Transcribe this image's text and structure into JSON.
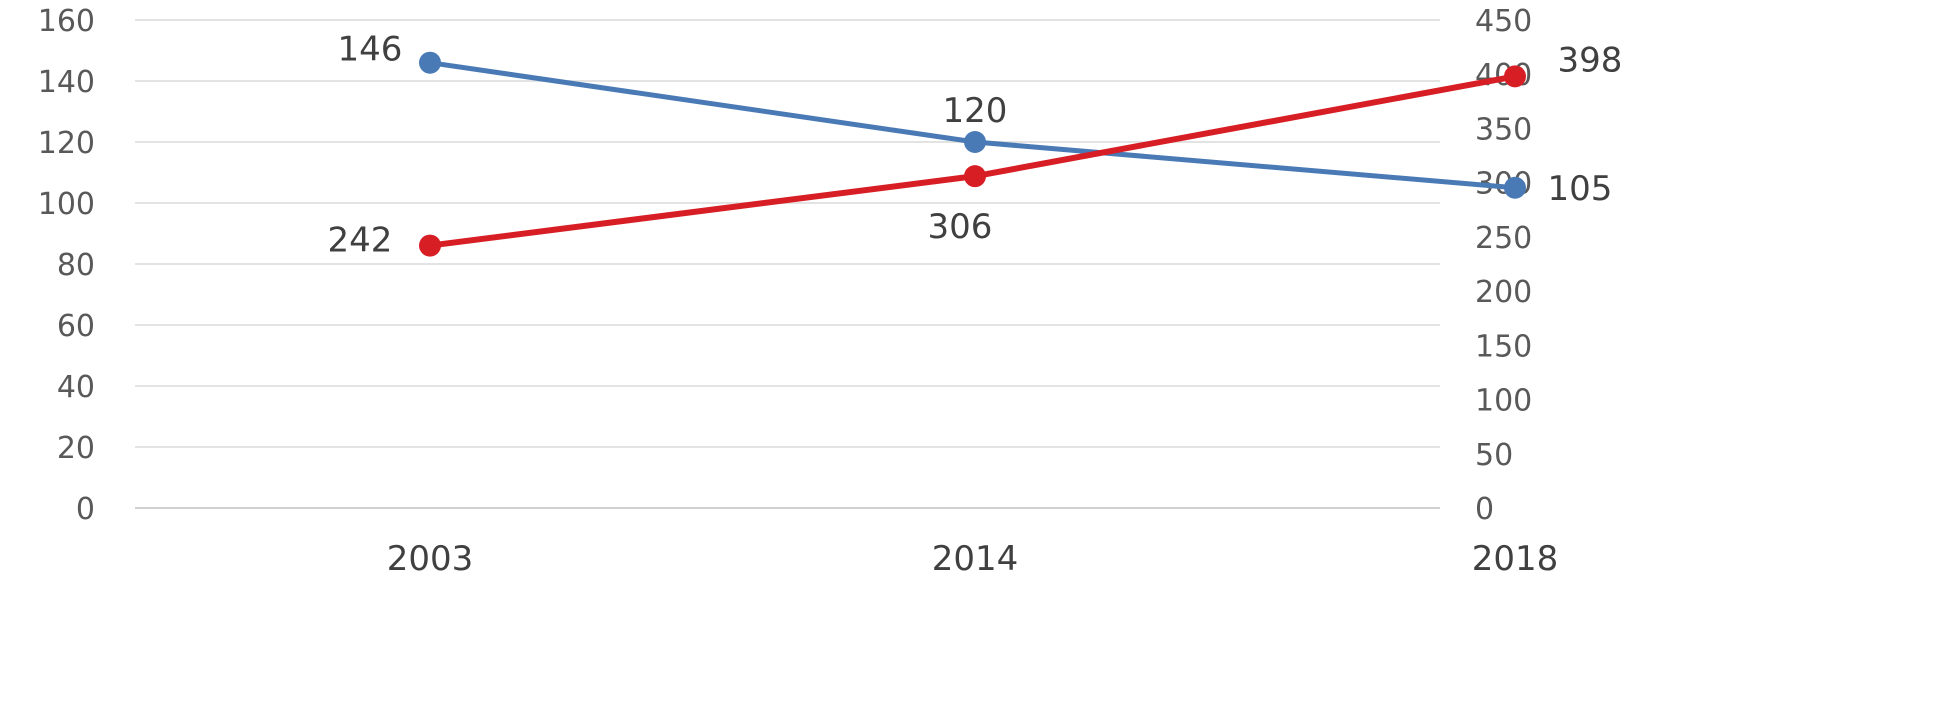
{
  "chart_data": {
    "type": "line",
    "categories": [
      "2003",
      "2014",
      "2018"
    ],
    "series": [
      {
        "axis": "left",
        "color": "#4a7ab5",
        "values": [
          146,
          120,
          105
        ]
      },
      {
        "axis": "right",
        "color": "#d81e25",
        "values": [
          242,
          306,
          398
        ]
      }
    ],
    "y_left": {
      "ticks": [
        "0",
        "20",
        "40",
        "60",
        "80",
        "100",
        "120",
        "140",
        "160"
      ],
      "ylim": [
        0,
        160
      ]
    },
    "y_right": {
      "ticks": [
        "0",
        "50",
        "100",
        "150",
        "200",
        "250",
        "300",
        "350",
        "400",
        "450"
      ],
      "ylim": [
        0,
        450
      ]
    },
    "grid": true,
    "legend": "none",
    "title": "",
    "xlabel": "",
    "ylabel": ""
  }
}
